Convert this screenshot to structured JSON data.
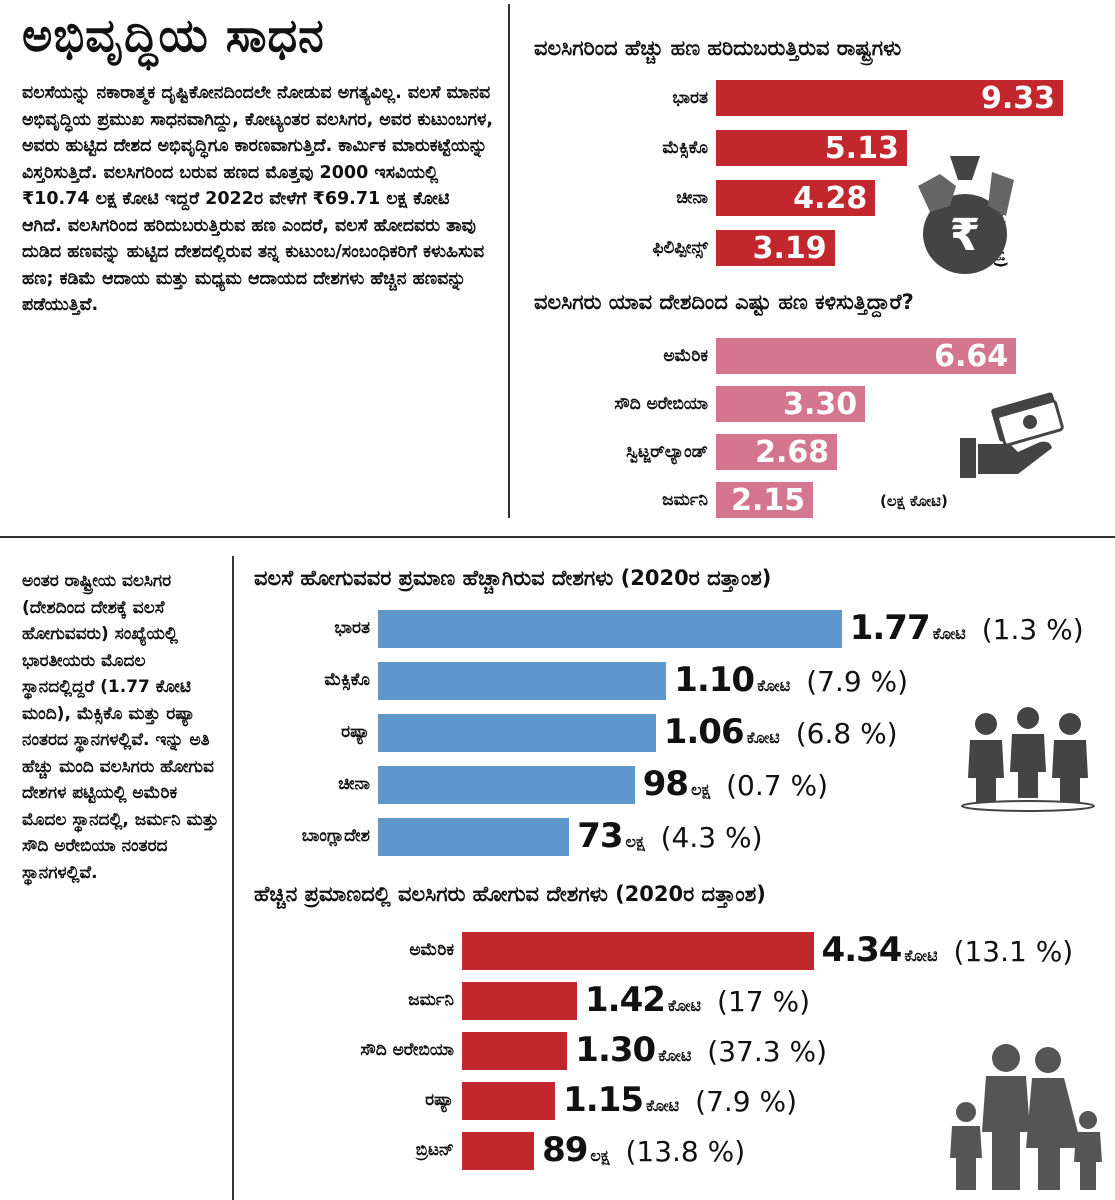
{
  "left_panel": {
    "title": "ಅಭಿವೃದ್ಧಿಯ ಸಾಧನ",
    "paragraph": "ವಲಸೆಯನ್ನು ನಕಾರಾತ್ಮಕ ದೃಷ್ಟಿಕೋನದಿಂದಲೇ ನೋಡುವ ಅಗತ್ಯವಿಲ್ಲ. ವಲಸೆ ಮಾನವ ಅಭಿವೃದ್ಧಿಯ ಪ್ರಮುಖ ಸಾಧನವಾಗಿದ್ದು, ಕೋಟ್ಯಂತರ ವಲಸಿಗರ, ಅವರ ಕುಟುಂಬಗಳ, ಅವರು ಹುಟ್ಟಿದ ದೇಶದ ಅಭಿವೃದ್ಧಿಗೂ ಕಾರಣವಾಗುತ್ತಿದೆ. ಕಾರ್ಮಿಕ ಮಾರುಕಟ್ಟೆಯನ್ನು ವಿಸ್ತರಿಸುತ್ತಿದೆ. ವಲಸಿಗರಿಂದ ಬರುವ ಹಣದ ಮೊತ್ತವು 2000 ಇಸವಿಯಲ್ಲಿ ₹10.74 ಲಕ್ಷ ಕೋಟಿ ಇದ್ದರೆ 2022ರ ವೇಳೆಗೆ ₹69.71 ಲಕ್ಷ ಕೋಟಿ ಆಗಿದೆ. ವಲಸಿಗರಿಂದ ಹರಿದುಬರುತ್ತಿರುವ ಹಣ ಎಂದರೆ, ವಲಸೆ ಹೋದವರು ತಾವು ದುಡಿದ ಹಣವನ್ನು ಹುಟ್ಟಿದ ದೇಶದಲ್ಲಿರುವ ತನ್ನ ಕುಟುಂಬ/ಸಂಬಂಧಿಕರಿಗೆ ಕಳುಹಿಸುವ ಹಣ; ಕಡಿಮೆ ಆದಾಯ ಮತ್ತು ಮಧ್ಯಮ ಆದಾಯದ ದೇಶಗಳು ಹೆಚ್ಚಿನ ಹಣವನ್ನು ಪಡೆಯುತ್ತಿವೆ."
  },
  "side_note": "ಅಂತರ ರಾಷ್ಟ್ರೀಯ ವಲಸಿಗರ (ದೇಶದಿಂದ ದೇಶಕ್ಕೆ ವಲಸೆ ಹೋಗುವವರು) ಸಂಖ್ಯೆಯಲ್ಲಿ ಭಾರತೀಯರು ಮೊದಲ ಸ್ಥಾನದಲ್ಲಿದ್ದರೆ (1.77 ಕೋಟಿ ಮಂದಿ), ಮೆಕ್ಸಿಕೊ ಮತ್ತು ರಷ್ಯಾ ನಂತರದ ಸ್ಥಾನಗಳಲ್ಲಿವೆ. ಇನ್ನು ಅತಿ ಹೆಚ್ಚು ಮಂದಿ ವಲಸಿಗರು ಹೋಗುವ ದೇಶಗಳ ಪಟ್ಟಿಯಲ್ಲಿ ಅಮೆರಿಕ ಮೊದಲ ಸ್ಥಾನದಲ್ಲಿ, ಜರ್ಮನಿ ಮತ್ತು ಸೌದಿ ಅರೇಬಿಯಾ ನಂತರದ ಸ್ಥಾನಗಳಲ್ಲಿವೆ.",
  "icons": [
    "money-bag-rupee-icon",
    "hand-money-icon",
    "people-group-icon",
    "family-icon"
  ],
  "colors": {
    "red": "#c1272d",
    "pink": "#d4768f",
    "blue": "#5e97cc"
  },
  "chart_data": [
    {
      "type": "bar",
      "title": "ವಲಸಿಗರಿಂದ ಹೆಚ್ಚು ಹಣ ಹರಿದುಬರುತ್ತಿರುವ ರಾಷ್ಟ್ರಗಳು",
      "unit": "(ಲಕ್ಷ ಕೋಟಿ)",
      "categories": [
        "ಭಾರತ",
        "ಮೆಕ್ಸಿಕೊ",
        "ಚೀನಾ",
        "ಫಿಲಿಪ್ಪೀನ್ಸ್"
      ],
      "values": [
        9.33,
        5.13,
        4.28,
        3.19
      ],
      "labels": [
        "9.33",
        "5.13",
        "4.28",
        "3.19"
      ],
      "color": "#c1272d"
    },
    {
      "type": "bar",
      "title": "ವಲಸಿಗರು ಯಾವ ದೇಶದಿಂದ ಎಷ್ಟು ಹಣ ಕಳಿಸುತ್ತಿದ್ದಾರೆ?",
      "unit": "(ಲಕ್ಷ ಕೋಟಿ)",
      "categories": [
        "ಅಮೆರಿಕ",
        "ಸೌದಿ ಅರೇಬಿಯಾ",
        "ಸ್ವಿಟ್ಜರ್‌ಲ್ಯಾಂಡ್",
        "ಜರ್ಮನಿ"
      ],
      "values": [
        6.64,
        3.3,
        2.68,
        2.15
      ],
      "labels": [
        "6.64",
        "3.30",
        "2.68",
        "2.15"
      ],
      "color": "#d4768f"
    },
    {
      "type": "bar",
      "title": "ವಲಸೆ ಹೋಗುವವರ ಪ್ರಮಾಣ ಹೆಚ್ಚಾಗಿರುವ ದೇಶಗಳು (2020ರ ದತ್ತಾಂಶ)",
      "categories": [
        "ಭಾರತ",
        "ಮೆಕ್ಸಿಕೊ",
        "ರಷ್ಯಾ",
        "ಚೀನಾ",
        "ಬಾಂಗ್ಲಾದೇಶ"
      ],
      "values_in_lakh": [
        177,
        110,
        106,
        98,
        73
      ],
      "labels": [
        {
          "num": "1.77",
          "unit": "ಕೋಟಿ",
          "pct": "(1.3 %)"
        },
        {
          "num": "1.10",
          "unit": "ಕೋಟಿ",
          "pct": "(7.9 %)"
        },
        {
          "num": "1.06",
          "unit": "ಕೋಟಿ",
          "pct": "(6.8 %)"
        },
        {
          "num": "98",
          "unit": "ಲಕ್ಷ",
          "pct": "(0.7 %)"
        },
        {
          "num": "73",
          "unit": "ಲಕ್ಷ",
          "pct": "(4.3 %)"
        }
      ],
      "color": "#5e97cc"
    },
    {
      "type": "bar",
      "title": "ಹೆಚ್ಚಿನ ಪ್ರಮಾಣದಲ್ಲಿ ವಲಸಿಗರು ಹೋಗುವ ದೇಶಗಳು (2020ರ ದತ್ತಾಂಶ)",
      "categories": [
        "ಅಮೆರಿಕ",
        "ಜರ್ಮನಿ",
        "ಸೌದಿ ಅರೇಬಿಯಾ",
        "ರಷ್ಯಾ",
        "ಬ್ರಿಟನ್"
      ],
      "values_in_lakh": [
        434,
        142,
        130,
        115,
        89
      ],
      "labels": [
        {
          "num": "4.34",
          "unit": "ಕೋಟಿ",
          "pct": "(13.1 %)"
        },
        {
          "num": "1.42",
          "unit": "ಕೋಟಿ",
          "pct": "(17 %)"
        },
        {
          "num": "1.30",
          "unit": "ಕೋಟಿ",
          "pct": "(37.3 %)"
        },
        {
          "num": "1.15",
          "unit": "ಕೋಟಿ",
          "pct": "(7.9 %)"
        },
        {
          "num": "89",
          "unit": "ಲಕ್ಷ",
          "pct": "(13.8 %)"
        }
      ],
      "color": "#c1272d"
    }
  ]
}
